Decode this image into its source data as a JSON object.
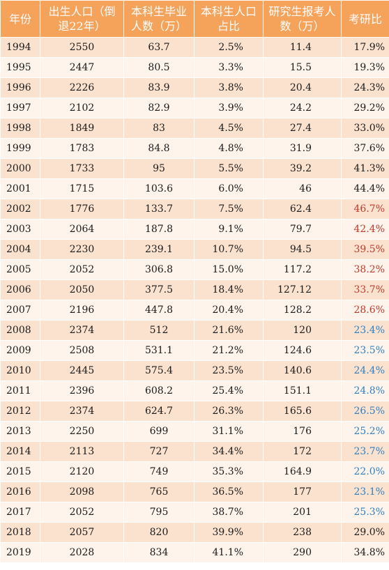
{
  "headers": {
    "year": "年份",
    "birth": "出生人口（倒退22年）",
    "undergrad": "本科生毕业人数（万）",
    "share": "本科生人口占比",
    "applicants": "研究生报考人数（万）",
    "ratio": "考研比"
  },
  "colors": {
    "header_bg": "#f5a25a",
    "row_odd": "#fbe2cf",
    "row_even": "#fef4ec",
    "ratio_red": "#c0392b",
    "ratio_blue": "#2f7fc1"
  },
  "rows": [
    {
      "year": "1994",
      "birth": "2550",
      "undergrad": "63.7",
      "share": "2.5%",
      "applicants": "11.4",
      "ratio": "17.9%",
      "ratio_color": "default"
    },
    {
      "year": "1995",
      "birth": "2447",
      "undergrad": "80.5",
      "share": "3.3%",
      "applicants": "15.5",
      "ratio": "19.3%",
      "ratio_color": "default"
    },
    {
      "year": "1996",
      "birth": "2226",
      "undergrad": "83.9",
      "share": "3.8%",
      "applicants": "20.4",
      "ratio": "24.3%",
      "ratio_color": "default"
    },
    {
      "year": "1997",
      "birth": "2102",
      "undergrad": "82.9",
      "share": "3.9%",
      "applicants": "24.2",
      "ratio": "29.2%",
      "ratio_color": "default"
    },
    {
      "year": "1998",
      "birth": "1849",
      "undergrad": "83",
      "share": "4.5%",
      "applicants": "27.4",
      "ratio": "33.0%",
      "ratio_color": "default"
    },
    {
      "year": "1999",
      "birth": "1783",
      "undergrad": "84.8",
      "share": "4.8%",
      "applicants": "31.9",
      "ratio": "37.6%",
      "ratio_color": "default"
    },
    {
      "year": "2000",
      "birth": "1733",
      "undergrad": "95",
      "share": "5.5%",
      "applicants": "39.2",
      "ratio": "41.3%",
      "ratio_color": "default"
    },
    {
      "year": "2001",
      "birth": "1715",
      "undergrad": "103.6",
      "share": "6.0%",
      "applicants": "46",
      "ratio": "44.4%",
      "ratio_color": "default"
    },
    {
      "year": "2002",
      "birth": "1776",
      "undergrad": "133.7",
      "share": "7.5%",
      "applicants": "62.4",
      "ratio": "46.7%",
      "ratio_color": "red"
    },
    {
      "year": "2003",
      "birth": "2064",
      "undergrad": "187.8",
      "share": "9.1%",
      "applicants": "79.7",
      "ratio": "42.4%",
      "ratio_color": "red"
    },
    {
      "year": "2004",
      "birth": "2230",
      "undergrad": "239.1",
      "share": "10.7%",
      "applicants": "94.5",
      "ratio": "39.5%",
      "ratio_color": "red"
    },
    {
      "year": "2005",
      "birth": "2052",
      "undergrad": "306.8",
      "share": "15.0%",
      "applicants": "117.2",
      "ratio": "38.2%",
      "ratio_color": "red"
    },
    {
      "year": "2006",
      "birth": "2050",
      "undergrad": "377.5",
      "share": "18.4%",
      "applicants": "127.12",
      "ratio": "33.7%",
      "ratio_color": "red"
    },
    {
      "year": "2007",
      "birth": "2196",
      "undergrad": "447.8",
      "share": "20.4%",
      "applicants": "128.2",
      "ratio": "28.6%",
      "ratio_color": "red"
    },
    {
      "year": "2008",
      "birth": "2374",
      "undergrad": "512",
      "share": "21.6%",
      "applicants": "120",
      "ratio": "23.4%",
      "ratio_color": "blue"
    },
    {
      "year": "2009",
      "birth": "2508",
      "undergrad": "531.1",
      "share": "21.2%",
      "applicants": "124.6",
      "ratio": "23.5%",
      "ratio_color": "blue"
    },
    {
      "year": "2010",
      "birth": "2445",
      "undergrad": "575.4",
      "share": "23.5%",
      "applicants": "140.6",
      "ratio": "24.4%",
      "ratio_color": "blue"
    },
    {
      "year": "2011",
      "birth": "2396",
      "undergrad": "608.2",
      "share": "25.4%",
      "applicants": "151.1",
      "ratio": "24.8%",
      "ratio_color": "blue"
    },
    {
      "year": "2012",
      "birth": "2374",
      "undergrad": "624.7",
      "share": "26.3%",
      "applicants": "165.6",
      "ratio": "26.5%",
      "ratio_color": "blue"
    },
    {
      "year": "2013",
      "birth": "2250",
      "undergrad": "699",
      "share": "31.1%",
      "applicants": "176",
      "ratio": "25.2%",
      "ratio_color": "blue"
    },
    {
      "year": "2014",
      "birth": "2113",
      "undergrad": "727",
      "share": "34.4%",
      "applicants": "172",
      "ratio": "23.7%",
      "ratio_color": "blue"
    },
    {
      "year": "2015",
      "birth": "2120",
      "undergrad": "749",
      "share": "35.3%",
      "applicants": "164.9",
      "ratio": "22.0%",
      "ratio_color": "blue"
    },
    {
      "year": "2016",
      "birth": "2098",
      "undergrad": "765",
      "share": "36.5%",
      "applicants": "177",
      "ratio": "23.1%",
      "ratio_color": "blue"
    },
    {
      "year": "2017",
      "birth": "2052",
      "undergrad": "795",
      "share": "38.7%",
      "applicants": "201",
      "ratio": "25.3%",
      "ratio_color": "blue"
    },
    {
      "year": "2018",
      "birth": "2057",
      "undergrad": "820",
      "share": "39.9%",
      "applicants": "238",
      "ratio": "29.0%",
      "ratio_color": "default"
    },
    {
      "year": "2019",
      "birth": "2028",
      "undergrad": "834",
      "share": "41.1%",
      "applicants": "290",
      "ratio": "34.8%",
      "ratio_color": "default"
    }
  ]
}
